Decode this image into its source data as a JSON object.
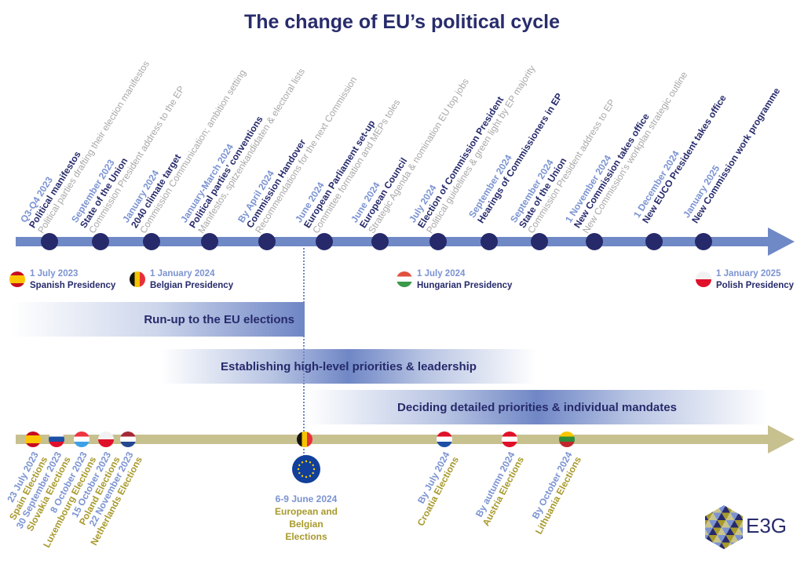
{
  "title": "The change of EU’s political cycle",
  "colors": {
    "navy": "#262a6b",
    "light_blue": "#7b93d1",
    "timeline": "#6f88c6",
    "elections_line": "#c7c08f",
    "olive": "#a89a2c",
    "grey": "#a8a8a8"
  },
  "events": [
    {
      "date": "Q3-Q4 2023",
      "title": "Political manifestos",
      "desc": "Political parties drafting their election manifestos"
    },
    {
      "date": "September 2023",
      "title": "State of the Union",
      "desc": "Commission President address to the EP"
    },
    {
      "date": "January 2024",
      "title": "2040 climate target",
      "desc": "Commission Communication; ambition setting"
    },
    {
      "date": "January-March 2024",
      "title": "Political parties’ conventions",
      "desc": "Manifestos, spitzenkandidaten & electoral lists"
    },
    {
      "date": "By April 2024",
      "title": "Commission Handover",
      "desc": "Recommendations for the next Commission"
    },
    {
      "date": "June 2024",
      "title": "European Parliament set-up",
      "desc": "Committee formation and MEPs toles"
    },
    {
      "date": "June 2024",
      "title": "European Council",
      "desc": "Strategic Agenda & nomination EU top jobs"
    },
    {
      "date": "July 2024",
      "title": "Election of Commission President",
      "desc": "Political guidelines & green light by EP majority"
    },
    {
      "date": "September 2024",
      "title": "Hearings of Commissioners in EP",
      "desc": ""
    },
    {
      "date": "September 2024",
      "title": "State of the Union",
      "desc": "Commission President address to EP"
    },
    {
      "date": "1 November 2024",
      "title": "New Commission takes office",
      "desc": "New Commission's workplan strategic outline"
    },
    {
      "date": "1 December 2024",
      "title": "New EUCO President takes office",
      "desc": ""
    },
    {
      "date": "January 2025",
      "title": "New Commission work programme",
      "desc": ""
    }
  ],
  "presidencies": [
    {
      "date": "1 July 2023",
      "name": "Spanish Presidency",
      "flag": "spain"
    },
    {
      "date": "1 January 2024",
      "name": "Belgian Presidency",
      "flag": "belgium"
    },
    {
      "date": "1 July 2024",
      "name": "Hungarian Presidency",
      "flag": "hungary"
    },
    {
      "date": "1 January 2025",
      "name": "Polish Presidency",
      "flag": "poland"
    }
  ],
  "phases": [
    "Run-up to the EU elections",
    "Establishing high-level priorities & leadership",
    "Deciding detailed priorities & individual mandates"
  ],
  "elections": [
    {
      "date": "23 July 2023",
      "country": "Spain Elections",
      "flag": "spain"
    },
    {
      "date": "30 September 2023",
      "country": "Slovakia Elections",
      "flag": "slovakia"
    },
    {
      "date": "8 October 2023",
      "country": "Luxembourg Elections",
      "flag": "luxembourg"
    },
    {
      "date": "15 October 2023",
      "country": "Poland Elections",
      "flag": "poland"
    },
    {
      "date": "22 November 2023",
      "country": "Netherlands Elections",
      "flag": "netherlands"
    },
    {
      "date": "By July 2024",
      "country": "Croatia Elections",
      "flag": "croatia"
    },
    {
      "date": "By autumn 2024",
      "country": "Austria Elections",
      "flag": "austria"
    },
    {
      "date": "By October 2024",
      "country": "Lithuania Elections",
      "flag": "lithuania"
    }
  ],
  "eu_elections": {
    "date": "6-9 June 2024",
    "line1": "European and",
    "line2": "Belgian",
    "line3": "Elections",
    "flag": "belgium"
  },
  "logo": {
    "text": "E3G"
  }
}
